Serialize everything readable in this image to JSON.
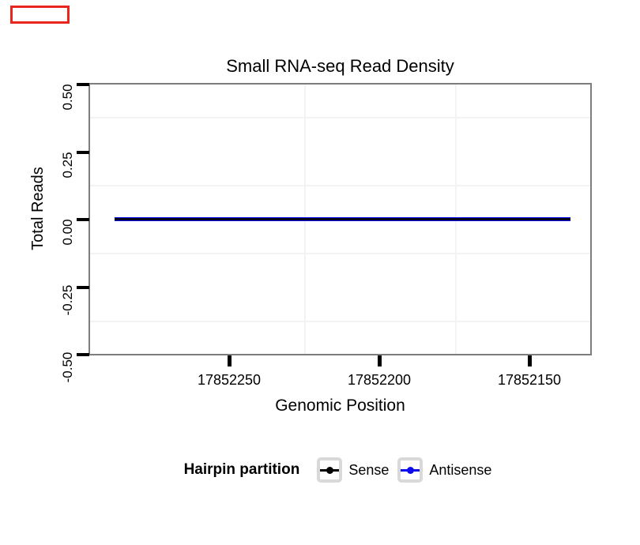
{
  "title": "Small RNA-seq Read Density",
  "axes": {
    "x": {
      "label": "Genomic Position",
      "ticks": [
        "17852250",
        "17852200",
        "17852150"
      ]
    },
    "y": {
      "label": "Total Reads",
      "ticks": [
        "0.50",
        "0.25",
        "0.00",
        "-0.25",
        "-0.50"
      ]
    }
  },
  "legend": {
    "title": "Hairpin partition",
    "items": [
      {
        "label": "Sense",
        "color": "#000000"
      },
      {
        "label": "Antisense",
        "color": "#0b0bee"
      }
    ]
  },
  "annotation": {
    "border_color": "#e8261d"
  },
  "chart_data": {
    "type": "line",
    "title": "Small RNA-seq Read Density",
    "xlabel": "Genomic Position",
    "ylabel": "Total Reads",
    "x_axis": {
      "tick_values": [
        17852250,
        17852200,
        17852150
      ],
      "reversed": true,
      "visible_range_approx": [
        17852296,
        17852138
      ]
    },
    "ylim": [
      -0.5,
      0.5
    ],
    "yticks": [
      0.5,
      0.25,
      0.0,
      -0.25,
      -0.5
    ],
    "grid": "minor gridlines only, very light gray, white panel with gray border",
    "legend_position": "bottom",
    "legend_title": "Hairpin partition",
    "series": [
      {
        "name": "Sense",
        "color": "#000000",
        "x": [
          17852288,
          17852137
        ],
        "y": [
          0,
          0
        ],
        "note": "constant zero line, drawn over Antisense"
      },
      {
        "name": "Antisense",
        "color": "#0b0bee",
        "x": [
          17852288,
          17852137
        ],
        "y": [
          0,
          0
        ],
        "note": "constant zero line, underneath Sense"
      }
    ]
  }
}
